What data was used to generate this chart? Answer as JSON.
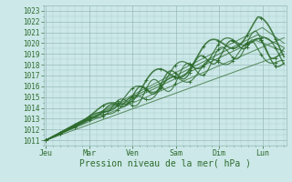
{
  "xlabel": "Pression niveau de la mer( hPa )",
  "background_color": "#cce8e8",
  "grid_color_minor": "#aacccc",
  "grid_color_major": "#99bbbb",
  "line_color": "#2d6b2d",
  "ylim": [
    1010.5,
    1023.5
  ],
  "xlim": [
    -0.05,
    5.55
  ],
  "day_labels": [
    "Jeu",
    "Mar",
    "Ven",
    "Sam",
    "Dim",
    "Lun"
  ],
  "day_positions": [
    0,
    1,
    2,
    3,
    4,
    5
  ],
  "yticks": [
    1011,
    1012,
    1013,
    1014,
    1015,
    1016,
    1017,
    1018,
    1019,
    1020,
    1021,
    1022,
    1023
  ]
}
